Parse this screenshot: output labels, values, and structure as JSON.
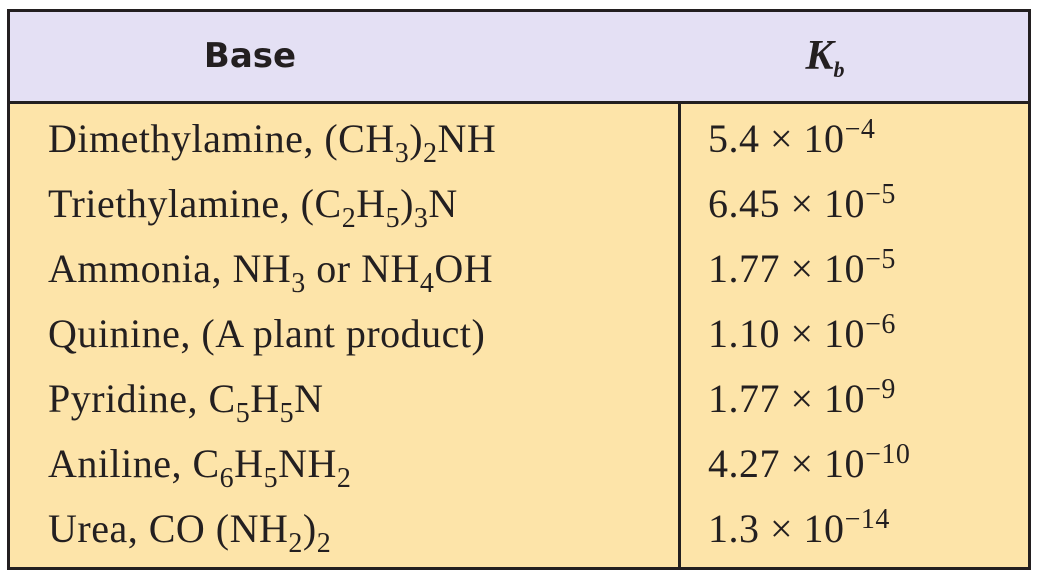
{
  "header": {
    "base": [
      {
        "text": "Base"
      }
    ],
    "kb": [
      {
        "text": "K"
      },
      {
        "sub": "b"
      }
    ]
  },
  "rows": [
    {
      "base": [
        {
          "text": "Dimethylamine, (CH"
        },
        {
          "sub": "3"
        },
        {
          "text": ")"
        },
        {
          "sub": "2"
        },
        {
          "text": "NH"
        }
      ],
      "kb": [
        {
          "text": "5.4 × 10"
        },
        {
          "sup": "−4"
        }
      ]
    },
    {
      "base": [
        {
          "text": "Triethylamine, (C"
        },
        {
          "sub": "2"
        },
        {
          "text": "H"
        },
        {
          "sub": "5"
        },
        {
          "text": ")"
        },
        {
          "sub": "3"
        },
        {
          "text": "N"
        }
      ],
      "kb": [
        {
          "text": "6.45 × 10"
        },
        {
          "sup": "−5"
        }
      ]
    },
    {
      "base": [
        {
          "text": "Ammonia, NH"
        },
        {
          "sub": "3"
        },
        {
          "text": " or NH"
        },
        {
          "sub": "4"
        },
        {
          "text": "OH"
        }
      ],
      "kb": [
        {
          "text": "1.77 × 10"
        },
        {
          "sup": "−5"
        }
      ]
    },
    {
      "base": [
        {
          "text": "Quinine, (A plant product)"
        }
      ],
      "kb": [
        {
          "text": "1.10 × 10"
        },
        {
          "sup": "−6"
        }
      ]
    },
    {
      "base": [
        {
          "text": "Pyridine, C"
        },
        {
          "sub": "5"
        },
        {
          "text": "H"
        },
        {
          "sub": "5"
        },
        {
          "text": "N"
        }
      ],
      "kb": [
        {
          "text": "1.77 × 10"
        },
        {
          "sup": "−9"
        }
      ]
    },
    {
      "base": [
        {
          "text": "Aniline, C"
        },
        {
          "sub": "6"
        },
        {
          "text": "H"
        },
        {
          "sub": "5"
        },
        {
          "text": "NH"
        },
        {
          "sub": "2"
        }
      ],
      "kb": [
        {
          "text": "4.27 × 10"
        },
        {
          "sup": "−10"
        }
      ]
    },
    {
      "base": [
        {
          "text": "Urea, CO (NH"
        },
        {
          "sub": "2"
        },
        {
          "text": ")"
        },
        {
          "sub": "2"
        }
      ],
      "kb": [
        {
          "text": "1.3 × 10"
        },
        {
          "sup": "−14"
        }
      ]
    }
  ]
}
